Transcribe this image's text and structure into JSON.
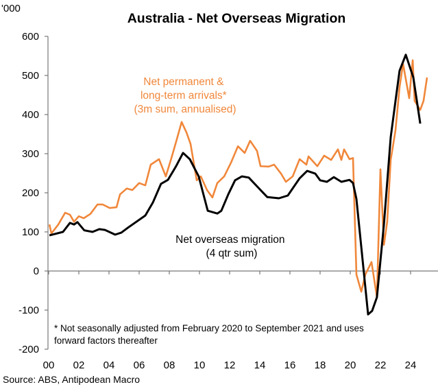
{
  "chart_data": {
    "type": "line",
    "title": "Australia - Net Overseas Migration",
    "ylabel": "'000",
    "xlabel": "",
    "ylim": [
      -200,
      600
    ],
    "xlim": [
      2000,
      2026
    ],
    "yticks": [
      -200,
      -100,
      0,
      100,
      200,
      300,
      400,
      500,
      600
    ],
    "xticks": [
      2000,
      2002,
      2004,
      2006,
      2008,
      2010,
      2012,
      2014,
      2016,
      2018,
      2020,
      2022,
      2024
    ],
    "xtick_labels": [
      "00",
      "02",
      "04",
      "06",
      "08",
      "10",
      "12",
      "14",
      "16",
      "18",
      "20",
      "22",
      "24"
    ],
    "grid": false,
    "legend": "inline labels",
    "series": [
      {
        "name": "Net permanent & long-term arrivals* (3m sum, annualised)",
        "label_lines": [
          "Net permanent &",
          "long-term arrivals*",
          "(3m sum, annualised)"
        ],
        "color": "#F0873A",
        "x": [
          2000.05,
          2000.18,
          2000.64,
          2001.09,
          2001.41,
          2001.68,
          2002.0,
          2002.32,
          2002.77,
          2003.23,
          2003.59,
          2004.05,
          2004.5,
          2004.73,
          2005.18,
          2005.55,
          2006.0,
          2006.41,
          2006.77,
          2007.32,
          2007.77,
          2008.14,
          2008.5,
          2008.82,
          2009.14,
          2009.41,
          2009.82,
          2010.09,
          2010.5,
          2010.86,
          2011.18,
          2011.64,
          2012.09,
          2012.55,
          2013.0,
          2013.36,
          2013.82,
          2014.05,
          2014.59,
          2014.95,
          2015.41,
          2015.73,
          2016.18,
          2016.64,
          2017.09,
          2017.23,
          2017.82,
          2018.27,
          2018.73,
          2019.18,
          2019.41,
          2019.59,
          2019.95,
          2020.18,
          2020.41,
          2020.73,
          2021.0,
          2021.41,
          2021.77,
          2022.0,
          2022.23,
          2022.45,
          2022.68,
          2023.0,
          2023.27,
          2023.5,
          2023.91,
          2024.14,
          2024.27,
          2024.64,
          2024.86,
          2025.09
        ],
        "y": [
          119,
          96,
          119,
          149,
          144,
          126,
          140,
          135,
          146,
          170,
          170,
          161,
          163,
          196,
          211,
          207,
          225,
          219,
          272,
          286,
          242,
          289,
          337,
          381,
          354,
          325,
          232,
          242,
          207,
          188,
          225,
          242,
          277,
          319,
          302,
          333,
          307,
          268,
          267,
          272,
          249,
          228,
          242,
          286,
          272,
          293,
          268,
          295,
          284,
          311,
          284,
          311,
          286,
          289,
          -9,
          -53,
          -9,
          23,
          -67,
          260,
          67,
          126,
          284,
          360,
          470,
          530,
          442,
          539,
          435,
          412,
          435,
          495
        ]
      },
      {
        "name": "Net overseas migration (4 qtr sum)",
        "label_lines": [
          "Net overseas migration",
          "(4 qtr sum)"
        ],
        "color": "#000000",
        "x": [
          2000.05,
          2000.95,
          2001.41,
          2001.68,
          2001.91,
          2002.36,
          2002.91,
          2003.36,
          2003.73,
          2004.41,
          2004.82,
          2005.27,
          2006.41,
          2006.91,
          2007.45,
          2007.91,
          2008.45,
          2008.91,
          2009.36,
          2009.95,
          2010.55,
          2011.18,
          2011.45,
          2011.91,
          2012.36,
          2012.82,
          2013.27,
          2014.05,
          2014.5,
          2015.27,
          2015.86,
          2016.64,
          2017.14,
          2017.68,
          2018.0,
          2018.45,
          2018.91,
          2019.41,
          2019.95,
          2020.18,
          2020.41,
          2020.73,
          2021.18,
          2021.45,
          2021.77,
          2022.23,
          2022.68,
          2023.0,
          2023.27,
          2023.68,
          2024.18,
          2024.64
        ],
        "y": [
          91,
          100,
          123,
          119,
          125,
          104,
          100,
          107,
          105,
          93,
          98,
          111,
          142,
          175,
          223,
          233,
          268,
          302,
          286,
          242,
          154,
          147,
          154,
          196,
          232,
          242,
          239,
          207,
          189,
          186,
          193,
          237,
          256,
          249,
          232,
          228,
          240,
          228,
          233,
          225,
          184,
          61,
          -111,
          -102,
          -67,
          119,
          342,
          435,
          512,
          553,
          495,
          377
        ]
      }
    ],
    "footnote_lines": [
      "* Not seasonally adjusted from February 2020 to September 2021 and uses",
      "forward factors thereafter"
    ],
    "source": "Source: ABS, Antipodean Macro"
  }
}
